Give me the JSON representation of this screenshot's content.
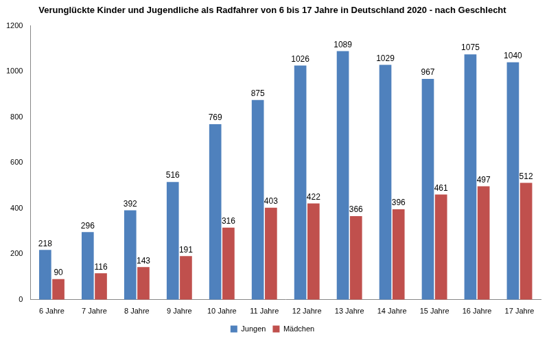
{
  "chart_data": {
    "type": "bar",
    "title": "Verunglückte Kinder und Jugendliche als Radfahrer von 6 bis 17 Jahre in Deutschland 2020 - nach Geschlecht",
    "categories": [
      "6 Jahre",
      "7 Jahre",
      "8 Jahre",
      "9 Jahre",
      "10 Jahre",
      "11 Jahre",
      "12 Jahre",
      "13 Jahre",
      "14 Jahre",
      "15 Jahre",
      "16 Jahre",
      "17 Jahre"
    ],
    "series": [
      {
        "name": "Jungen",
        "color": "#4f81bd",
        "values": [
          218,
          296,
          392,
          516,
          769,
          875,
          1026,
          1089,
          1029,
          967,
          1075,
          1040
        ]
      },
      {
        "name": "Mädchen",
        "color": "#c0504d",
        "values": [
          90,
          116,
          143,
          191,
          316,
          403,
          422,
          366,
          396,
          461,
          497,
          512
        ]
      }
    ],
    "ylim": [
      0,
      1200
    ],
    "yticks": [
      0,
      200,
      400,
      600,
      800,
      1000,
      1200
    ],
    "grid": false,
    "legend": "bottom",
    "data_labels": true
  }
}
